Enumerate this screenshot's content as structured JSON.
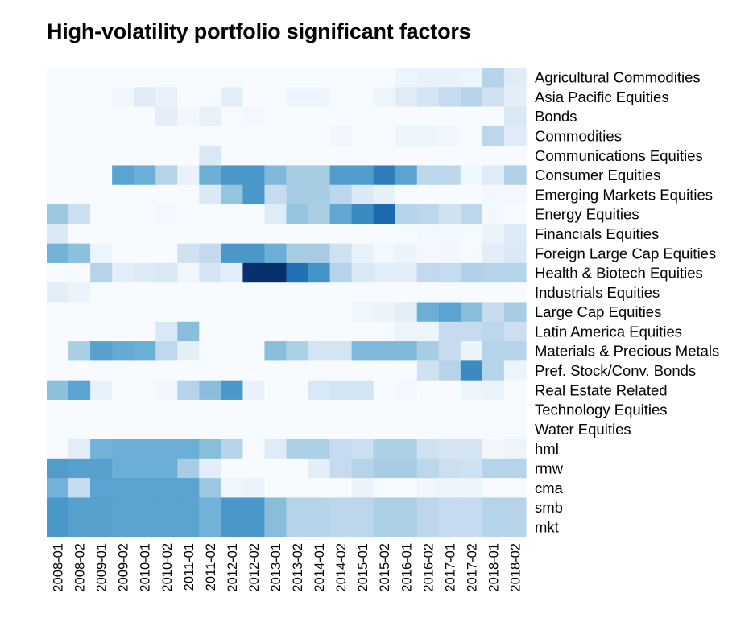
{
  "chart_data": {
    "type": "heatmap",
    "title": "High-volatility portfolio significant factors",
    "xlabel": "",
    "ylabel": "",
    "color_scale": {
      "low": "#f7fbff",
      "high": "#08306b"
    },
    "value_range": [
      0,
      1
    ],
    "columns": [
      "2008-01",
      "2008-02",
      "2009-01",
      "2009-02",
      "2010-01",
      "2010-02",
      "2011-01",
      "2011-02",
      "2012-01",
      "2012-02",
      "2013-01",
      "2013-02",
      "2014-01",
      "2014-02",
      "2015-01",
      "2015-02",
      "2016-01",
      "2016-02",
      "2017-01",
      "2017-02",
      "2018-01",
      "2018-02"
    ],
    "rows": [
      {
        "label": "Agricultural Commodities",
        "values": [
          0,
          0,
          0,
          0,
          0,
          0,
          0,
          0,
          0,
          0,
          0,
          0,
          0,
          0,
          0,
          0,
          0.05,
          0.07,
          0.07,
          0.05,
          0.3,
          0.12
        ]
      },
      {
        "label": "Asia Pacific Equities",
        "values": [
          0,
          0,
          0,
          0.03,
          0.12,
          0.07,
          0,
          0,
          0.1,
          0,
          0,
          0.05,
          0.05,
          0,
          0,
          0.05,
          0.12,
          0.18,
          0.25,
          0.3,
          0.2,
          0.1
        ]
      },
      {
        "label": "Bonds",
        "values": [
          0,
          0,
          0,
          0,
          0,
          0.1,
          0.03,
          0.08,
          0,
          0.02,
          0,
          0,
          0,
          0,
          0,
          0,
          0,
          0,
          0,
          0,
          0,
          0.15
        ]
      },
      {
        "label": "Commodities",
        "values": [
          0,
          0,
          0,
          0,
          0,
          0,
          0,
          0,
          0,
          0,
          0,
          0,
          0,
          0.03,
          0,
          0,
          0.05,
          0.05,
          0.03,
          0,
          0.28,
          0.12
        ]
      },
      {
        "label": "Communications Equities",
        "values": [
          0,
          0,
          0,
          0,
          0,
          0,
          0,
          0.15,
          0,
          0,
          0,
          0,
          0,
          0,
          0,
          0,
          0,
          0,
          0,
          0,
          0,
          0
        ]
      },
      {
        "label": "Consumer Equities",
        "values": [
          0,
          0,
          0,
          0.55,
          0.5,
          0.3,
          0.07,
          0.5,
          0.6,
          0.6,
          0.45,
          0.35,
          0.35,
          0.58,
          0.58,
          0.7,
          0.55,
          0.28,
          0.28,
          0.04,
          0.12,
          0.32
        ]
      },
      {
        "label": "Emerging Markets Equities",
        "values": [
          0,
          0,
          0,
          0,
          0,
          0,
          0,
          0.14,
          0.4,
          0.6,
          0.25,
          0.35,
          0.35,
          0.28,
          0.14,
          0.08,
          0,
          0,
          0,
          0,
          0.02,
          0.02
        ]
      },
      {
        "label": "Energy Equities",
        "values": [
          0.38,
          0.22,
          0,
          0,
          0,
          0.02,
          0,
          0,
          0,
          0,
          0.12,
          0.4,
          0.34,
          0.53,
          0.65,
          0.78,
          0.3,
          0.28,
          0.2,
          0.28,
          0.02,
          0
        ]
      },
      {
        "label": "Financials Equities",
        "values": [
          0.14,
          0,
          0,
          0,
          0,
          0,
          0,
          0,
          0,
          0,
          0,
          0,
          0,
          0,
          0,
          0,
          0.01,
          0.02,
          0.02,
          0.01,
          0.06,
          0.13
        ]
      },
      {
        "label": "Foreign Large Cap Equities",
        "values": [
          0.48,
          0.42,
          0.05,
          0,
          0,
          0,
          0.2,
          0.26,
          0.6,
          0.6,
          0.5,
          0.35,
          0.35,
          0.2,
          0.08,
          0.02,
          0.06,
          0.02,
          0.03,
          0.01,
          0.1,
          0.14
        ]
      },
      {
        "label": "Health & Biotech Equities",
        "values": [
          0,
          0,
          0.3,
          0.1,
          0.13,
          0.15,
          0.04,
          0.17,
          0.1,
          1.0,
          1.0,
          0.75,
          0.62,
          0.3,
          0.15,
          0.11,
          0.11,
          0.26,
          0.25,
          0.32,
          0.3,
          0.3
        ]
      },
      {
        "label": "Industrials Equities",
        "values": [
          0.1,
          0.06,
          0,
          0,
          0,
          0,
          0,
          0,
          0,
          0,
          0,
          0,
          0,
          0,
          0,
          0,
          0,
          0,
          0,
          0,
          0,
          0
        ]
      },
      {
        "label": "Large Cap Equities",
        "values": [
          0,
          0,
          0,
          0,
          0,
          0,
          0,
          0,
          0,
          0,
          0,
          0,
          0,
          0,
          0.04,
          0.06,
          0.1,
          0.5,
          0.55,
          0.43,
          0.25,
          0.35
        ]
      },
      {
        "label": "Latin America Equities",
        "values": [
          0,
          0,
          0,
          0,
          0,
          0.15,
          0.43,
          0,
          0,
          0,
          0,
          0,
          0,
          0,
          0,
          0,
          0.05,
          0.05,
          0.25,
          0.25,
          0.28,
          0.22
        ]
      },
      {
        "label": "Materials & Precious Metals",
        "values": [
          0,
          0.34,
          0.56,
          0.52,
          0.5,
          0.27,
          0.1,
          0,
          0,
          0,
          0.43,
          0.33,
          0.18,
          0.18,
          0.45,
          0.45,
          0.45,
          0.35,
          0.25,
          0.06,
          0.3,
          0.3
        ]
      },
      {
        "label": "Pref. Stock/Conv. Bonds",
        "values": [
          0,
          0,
          0,
          0,
          0,
          0,
          0,
          0,
          0,
          0,
          0,
          0,
          0,
          0,
          0,
          0,
          0,
          0.2,
          0.3,
          0.65,
          0.3,
          0.05
        ]
      },
      {
        "label": "Real Estate Related",
        "values": [
          0.42,
          0.55,
          0.08,
          0,
          0,
          0.03,
          0.3,
          0.43,
          0.6,
          0.07,
          0,
          0,
          0.15,
          0.18,
          0.18,
          0,
          0.02,
          0,
          0,
          0.05,
          0.06,
          0
        ]
      },
      {
        "label": "Technology Equities",
        "values": [
          0,
          0,
          0,
          0,
          0,
          0,
          0,
          0,
          0,
          0,
          0,
          0,
          0,
          0,
          0,
          0,
          0,
          0,
          0,
          0,
          0,
          0
        ]
      },
      {
        "label": "Water Equities",
        "values": [
          0,
          0,
          0,
          0,
          0,
          0,
          0,
          0,
          0,
          0,
          0,
          0,
          0,
          0,
          0,
          0,
          0,
          0,
          0,
          0,
          0,
          0
        ]
      },
      {
        "label": "hml",
        "values": [
          0,
          0.1,
          0.48,
          0.5,
          0.5,
          0.5,
          0.5,
          0.43,
          0.3,
          0,
          0.12,
          0.33,
          0.33,
          0.25,
          0.22,
          0.33,
          0.33,
          0.2,
          0.17,
          0.17,
          0.03,
          0.05
        ]
      },
      {
        "label": "rmw",
        "values": [
          0.58,
          0.56,
          0.56,
          0.5,
          0.5,
          0.5,
          0.35,
          0.1,
          0,
          0,
          0,
          0,
          0.1,
          0.25,
          0.3,
          0.35,
          0.35,
          0.28,
          0.22,
          0.2,
          0.3,
          0.3
        ]
      },
      {
        "label": "cma",
        "values": [
          0.48,
          0.24,
          0.55,
          0.55,
          0.55,
          0.55,
          0.55,
          0.38,
          0.04,
          0.06,
          0,
          0,
          0,
          0,
          0.06,
          0,
          0,
          0.04,
          0.05,
          0.05,
          0,
          0
        ]
      },
      {
        "label": "smb",
        "values": [
          0.6,
          0.56,
          0.56,
          0.55,
          0.55,
          0.55,
          0.55,
          0.48,
          0.6,
          0.6,
          0.43,
          0.3,
          0.3,
          0.28,
          0.28,
          0.33,
          0.33,
          0.28,
          0.25,
          0.25,
          0.3,
          0.3
        ]
      },
      {
        "label": "mkt",
        "values": [
          0.6,
          0.56,
          0.56,
          0.55,
          0.55,
          0.55,
          0.55,
          0.48,
          0.6,
          0.6,
          0.43,
          0.3,
          0.3,
          0.28,
          0.28,
          0.33,
          0.33,
          0.28,
          0.25,
          0.25,
          0.3,
          0.3
        ]
      }
    ]
  }
}
